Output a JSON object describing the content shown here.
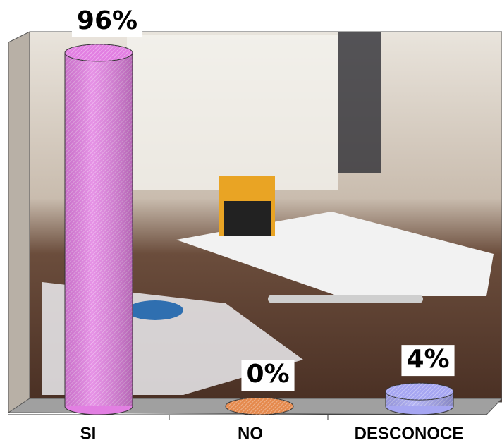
{
  "chart_data": {
    "type": "cylinder",
    "categories": [
      "SI",
      "NO",
      "DESCONOCE"
    ],
    "values": [
      96,
      0,
      4
    ],
    "value_labels": [
      "96%",
      "0%",
      "4%"
    ],
    "colors": [
      "#e27fe2",
      "#e58a4e",
      "#a6a6f2"
    ],
    "ylim": [
      0,
      100
    ]
  }
}
